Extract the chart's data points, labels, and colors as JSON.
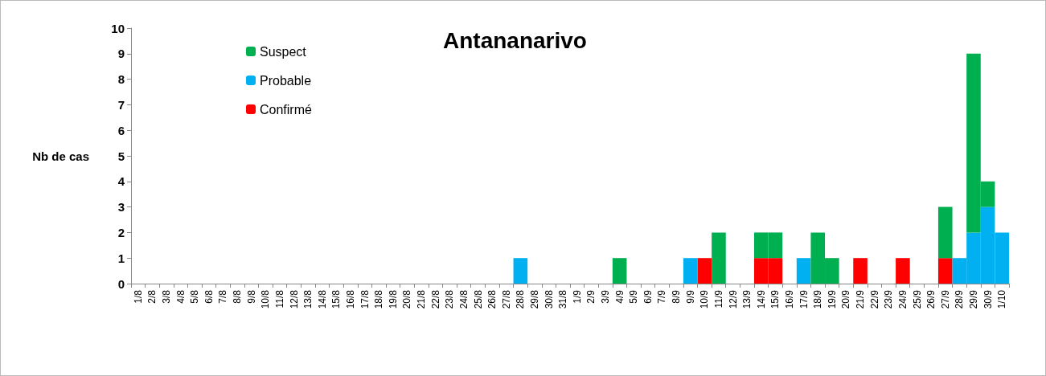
{
  "chart_data": {
    "type": "bar",
    "title": "Antananarivo",
    "ylabel": "Nb de cas",
    "stacked": true,
    "categories": [
      "1/8",
      "2/8",
      "3/8",
      "4/8",
      "5/8",
      "6/8",
      "7/8",
      "8/8",
      "9/8",
      "10/8",
      "11/8",
      "12/8",
      "13/8",
      "14/8",
      "15/8",
      "16/8",
      "17/8",
      "18/8",
      "19/8",
      "20/8",
      "21/8",
      "22/8",
      "23/8",
      "24/8",
      "25/8",
      "26/8",
      "27/8",
      "28/8",
      "29/8",
      "30/8",
      "31/8",
      "1/9",
      "2/9",
      "3/9",
      "4/9",
      "5/9",
      "6/9",
      "7/9",
      "8/9",
      "9/9",
      "10/9",
      "11/9",
      "12/9",
      "13/9",
      "14/9",
      "15/9",
      "16/9",
      "17/9",
      "18/9",
      "19/9",
      "20/9",
      "21/9",
      "22/9",
      "23/9",
      "24/9",
      "25/9",
      "26/9",
      "27/9",
      "28/9",
      "29/9",
      "30/9",
      "1/10"
    ],
    "series": [
      {
        "name": "Confirmé",
        "color": "#ff0000",
        "values": [
          0,
          0,
          0,
          0,
          0,
          0,
          0,
          0,
          0,
          0,
          0,
          0,
          0,
          0,
          0,
          0,
          0,
          0,
          0,
          0,
          0,
          0,
          0,
          0,
          0,
          0,
          0,
          0,
          0,
          0,
          0,
          0,
          0,
          0,
          0,
          0,
          0,
          0,
          0,
          0,
          1,
          0,
          0,
          0,
          1,
          1,
          0,
          0,
          0,
          0,
          0,
          1,
          0,
          0,
          1,
          0,
          0,
          1,
          0,
          0,
          0,
          0
        ]
      },
      {
        "name": "Probable",
        "color": "#00b0f0",
        "values": [
          0,
          0,
          0,
          0,
          0,
          0,
          0,
          0,
          0,
          0,
          0,
          0,
          0,
          0,
          0,
          0,
          0,
          0,
          0,
          0,
          0,
          0,
          0,
          0,
          0,
          0,
          0,
          1,
          0,
          0,
          0,
          0,
          0,
          0,
          0,
          0,
          0,
          0,
          0,
          1,
          0,
          0,
          0,
          0,
          0,
          0,
          0,
          1,
          0,
          0,
          0,
          0,
          0,
          0,
          0,
          0,
          0,
          0,
          1,
          2,
          3,
          2
        ]
      },
      {
        "name": "Suspect",
        "color": "#00b050",
        "values": [
          0,
          0,
          0,
          0,
          0,
          0,
          0,
          0,
          0,
          0,
          0,
          0,
          0,
          0,
          0,
          0,
          0,
          0,
          0,
          0,
          0,
          0,
          0,
          0,
          0,
          0,
          0,
          0,
          0,
          0,
          0,
          0,
          0,
          0,
          1,
          0,
          0,
          0,
          0,
          0,
          0,
          2,
          0,
          0,
          1,
          1,
          0,
          0,
          2,
          1,
          0,
          0,
          0,
          0,
          0,
          0,
          0,
          2,
          0,
          7,
          1,
          0
        ]
      }
    ],
    "ylim": [
      0,
      10
    ],
    "yticks": [
      0,
      1,
      2,
      3,
      4,
      5,
      6,
      7,
      8,
      9,
      10
    ],
    "grid": false,
    "legend": "top left"
  }
}
